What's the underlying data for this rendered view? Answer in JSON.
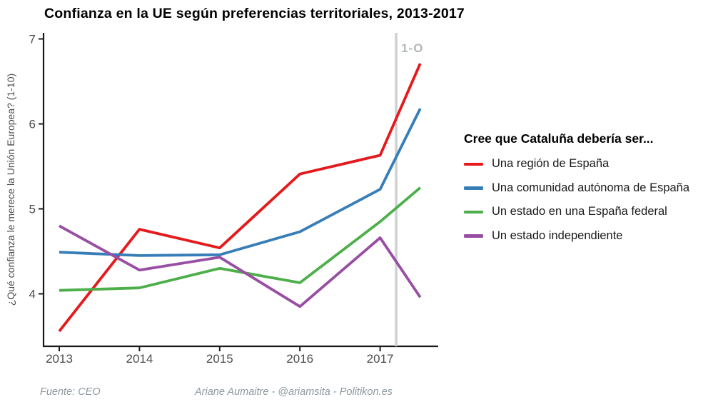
{
  "footer": {
    "source": "Fuente: CEO",
    "credit": "Ariane Aumaitre - @ariamsita - Politikon.es"
  },
  "chart_data": {
    "type": "line",
    "title": "Confianza en la UE según preferencias territoriales, 2013-2017",
    "xlabel": "",
    "ylabel": "¿Qué confianza le merece la Unión Europea? (1-10)",
    "x_ticks": [
      2013,
      2014,
      2015,
      2016,
      2017
    ],
    "y_ticks": [
      4,
      5,
      6,
      7
    ],
    "xlim": [
      2012.8,
      2017.72
    ],
    "ylim": [
      3.38,
      7.07
    ],
    "grid": false,
    "legend_title": "Cree que Cataluña debería ser...",
    "legend_position": "right",
    "x": [
      2013,
      2014,
      2015,
      2016,
      2017,
      2017.5
    ],
    "series": [
      {
        "name": "Una región de España",
        "color": "#e41a1c",
        "values": [
          3.56,
          4.76,
          4.54,
          5.41,
          5.63,
          6.71
        ]
      },
      {
        "name": "Una comunidad autónoma de España",
        "color": "#377eb8",
        "values": [
          4.49,
          4.45,
          4.46,
          4.73,
          5.23,
          6.18
        ]
      },
      {
        "name": "Un estado en una España federal",
        "color": "#4daf4a",
        "values": [
          4.04,
          4.07,
          4.3,
          4.13,
          4.85,
          5.25
        ]
      },
      {
        "name": "Un estado independiente",
        "color": "#984ea3",
        "values": [
          4.8,
          4.28,
          4.43,
          3.85,
          4.66,
          3.96
        ]
      }
    ],
    "refline": {
      "x": 2017.2,
      "label": "1-O",
      "color": "#cdd1d1",
      "label_color": "#b2b7b8"
    },
    "axis_color": "#1a1a1a",
    "tick_label_color": "#4d4d4d"
  }
}
